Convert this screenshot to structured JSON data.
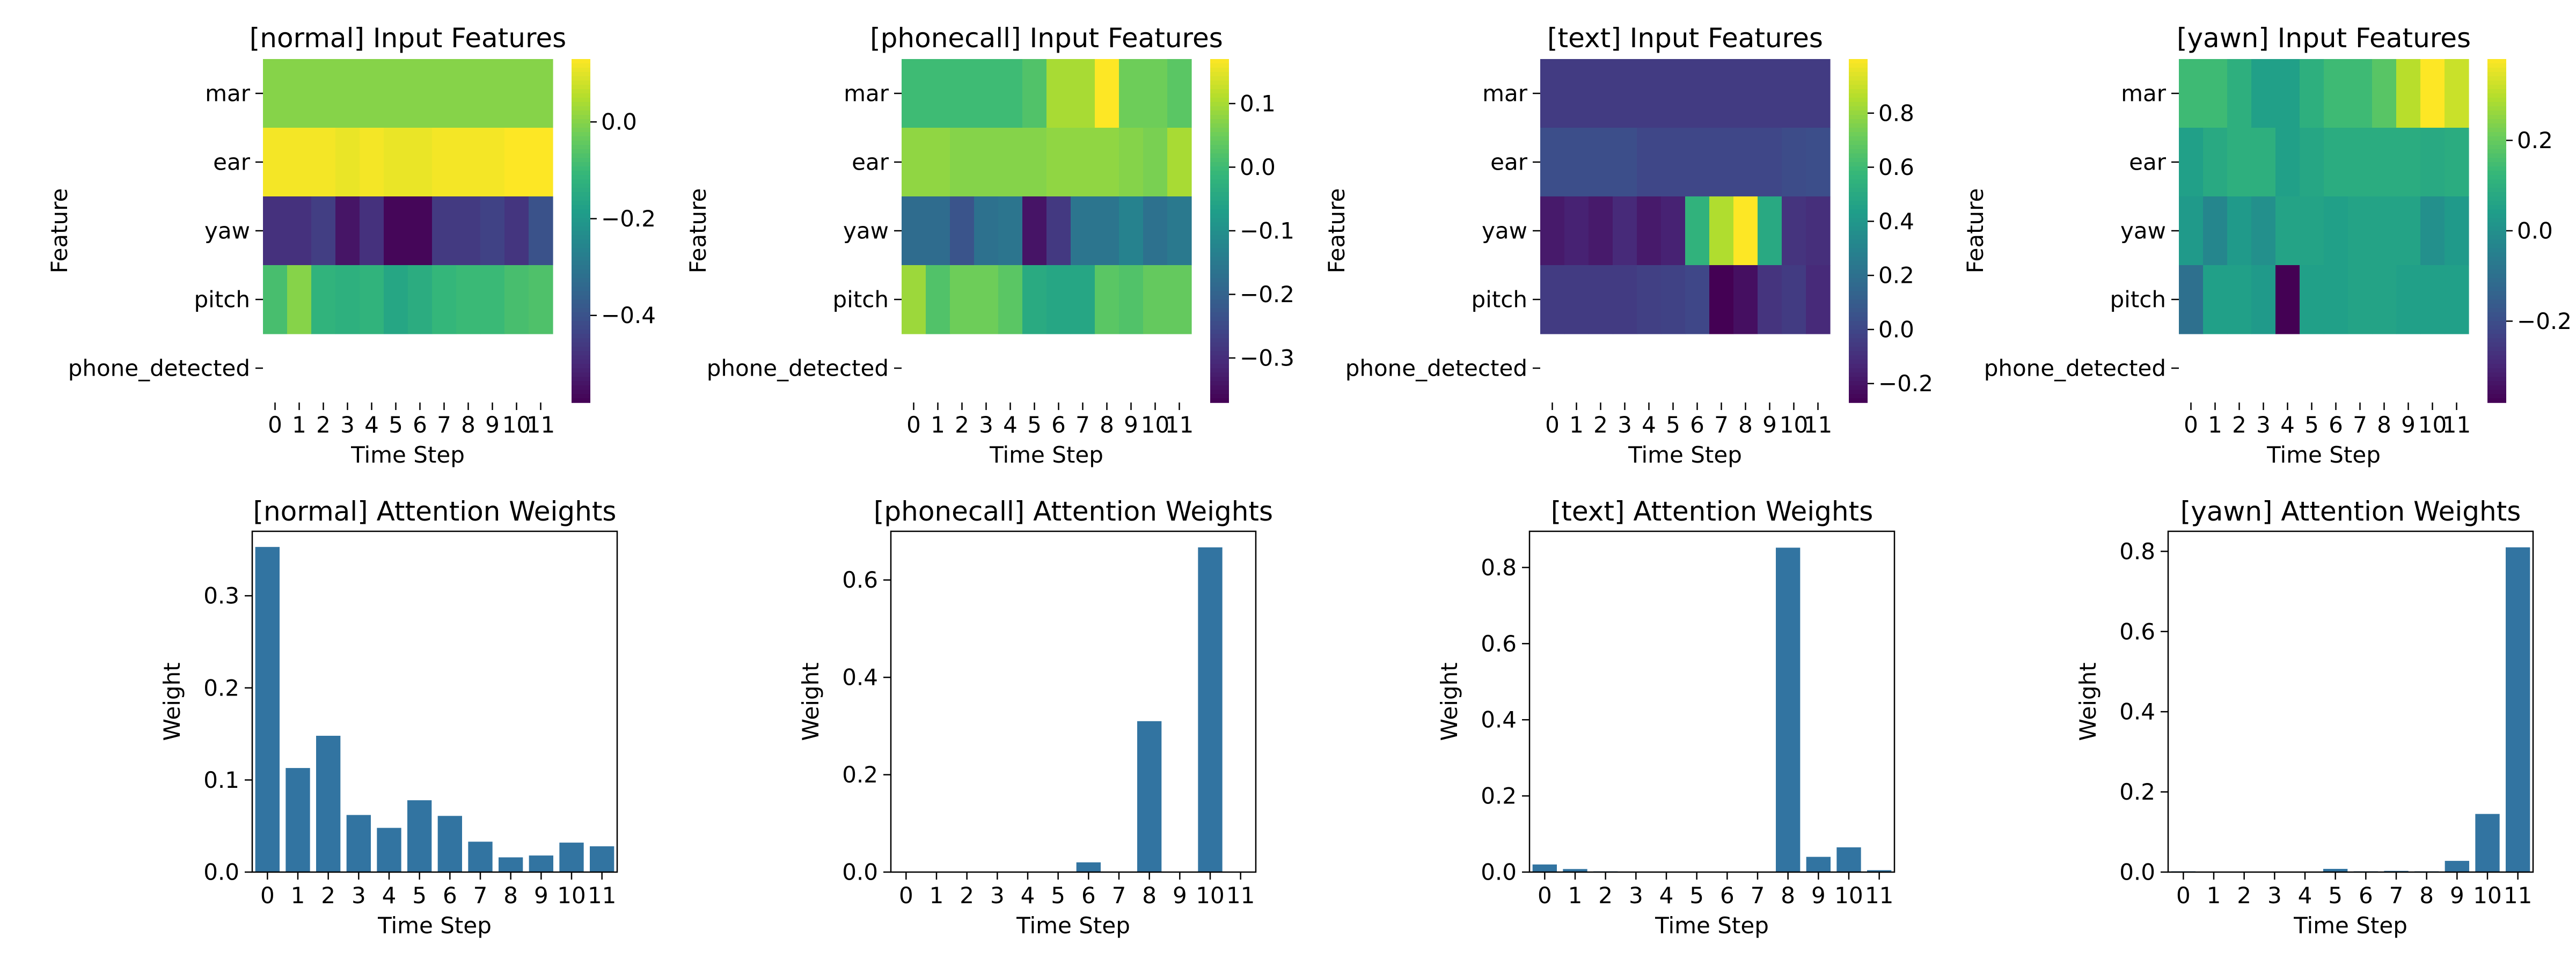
{
  "figure": {
    "background": "#ffffff",
    "text_color": "#000000",
    "bar_color": "#3274a1"
  },
  "chart_data": [
    {
      "type": "heatmap",
      "title": "[normal] Input Features",
      "xlabel": "Time Step",
      "ylabel": "Feature",
      "x": [
        "0",
        "1",
        "2",
        "3",
        "4",
        "5",
        "6",
        "7",
        "8",
        "9",
        "10",
        "11"
      ],
      "y": [
        "mar",
        "ear",
        "yaw",
        "pitch",
        "phone_detected"
      ],
      "colormap": "viridis",
      "vmin": -0.58,
      "vmax": 0.13,
      "colorbar_ticks": [
        0.0,
        -0.2,
        -0.4
      ],
      "colorbar_tick_labels": [
        "0.0",
        "−0.2",
        "−0.4"
      ],
      "values": [
        [
          0.0,
          0.0,
          0.0,
          0.0,
          0.0,
          0.0,
          0.0,
          0.0,
          0.0,
          0.0,
          0.0,
          0.0
        ],
        [
          0.12,
          0.12,
          0.12,
          0.11,
          0.12,
          0.11,
          0.11,
          0.12,
          0.12,
          0.12,
          0.13,
          0.13
        ],
        [
          -0.48,
          -0.48,
          -0.45,
          -0.54,
          -0.48,
          -0.57,
          -0.57,
          -0.46,
          -0.46,
          -0.44,
          -0.47,
          -0.4
        ],
        [
          -0.08,
          0.0,
          -0.12,
          -0.13,
          -0.12,
          -0.16,
          -0.14,
          -0.11,
          -0.1,
          -0.1,
          -0.08,
          -0.07
        ],
        null
      ]
    },
    {
      "type": "heatmap",
      "title": "[phonecall] Input Features",
      "xlabel": "Time Step",
      "ylabel": "Feature",
      "x": [
        "0",
        "1",
        "2",
        "3",
        "4",
        "5",
        "6",
        "7",
        "8",
        "9",
        "10",
        "11"
      ],
      "y": [
        "mar",
        "ear",
        "yaw",
        "pitch",
        "phone_detected"
      ],
      "colormap": "viridis",
      "vmin": -0.37,
      "vmax": 0.17,
      "colorbar_ticks": [
        0.1,
        0.0,
        -0.1,
        -0.2,
        -0.3
      ],
      "colorbar_tick_labels": [
        "0.1",
        "0.0",
        "−0.1",
        "−0.2",
        "−0.3"
      ],
      "values": [
        [
          0.0,
          0.0,
          0.0,
          0.0,
          0.0,
          0.02,
          0.1,
          0.1,
          0.17,
          0.05,
          0.05,
          0.03
        ],
        [
          0.08,
          0.08,
          0.07,
          0.07,
          0.07,
          0.07,
          0.08,
          0.08,
          0.08,
          0.07,
          0.06,
          0.1
        ],
        [
          -0.18,
          -0.18,
          -0.23,
          -0.17,
          -0.16,
          -0.34,
          -0.28,
          -0.16,
          -0.16,
          -0.13,
          -0.17,
          -0.15
        ],
        [
          0.09,
          0.02,
          0.05,
          0.05,
          0.03,
          -0.04,
          -0.05,
          -0.05,
          0.03,
          0.02,
          0.04,
          0.04
        ],
        null
      ]
    },
    {
      "type": "heatmap",
      "title": "[text] Input Features",
      "xlabel": "Time Step",
      "ylabel": "Feature",
      "x": [
        "0",
        "1",
        "2",
        "3",
        "4",
        "5",
        "6",
        "7",
        "8",
        "9",
        "10",
        "11"
      ],
      "y": [
        "mar",
        "ear",
        "yaw",
        "pitch",
        "phone_detected"
      ],
      "colormap": "viridis",
      "vmin": -0.27,
      "vmax": 1.0,
      "colorbar_ticks": [
        0.8,
        0.6,
        0.4,
        0.2,
        0.0,
        -0.2
      ],
      "colorbar_tick_labels": [
        "0.8",
        "0.6",
        "0.4",
        "0.2",
        "0.0",
        "−0.2"
      ],
      "values": [
        [
          -0.05,
          -0.05,
          -0.05,
          -0.05,
          -0.05,
          -0.05,
          -0.05,
          -0.05,
          -0.05,
          -0.05,
          -0.05,
          -0.05
        ],
        [
          0.03,
          0.03,
          0.03,
          0.03,
          0.0,
          0.0,
          0.0,
          0.0,
          0.0,
          0.0,
          0.02,
          0.03
        ],
        [
          -0.18,
          -0.15,
          -0.18,
          -0.12,
          -0.18,
          -0.15,
          0.55,
          0.85,
          1.0,
          0.5,
          -0.08,
          -0.1
        ],
        [
          -0.05,
          -0.05,
          -0.05,
          -0.05,
          -0.03,
          -0.02,
          0.0,
          -0.27,
          -0.22,
          -0.08,
          -0.05,
          -0.12
        ],
        null
      ]
    },
    {
      "type": "heatmap",
      "title": "[yawn] Input Features",
      "xlabel": "Time Step",
      "ylabel": "Feature",
      "x": [
        "0",
        "1",
        "2",
        "3",
        "4",
        "5",
        "6",
        "7",
        "8",
        "9",
        "10",
        "11"
      ],
      "y": [
        "mar",
        "ear",
        "yaw",
        "pitch",
        "phone_detected"
      ],
      "colormap": "viridis",
      "vmin": -0.38,
      "vmax": 0.38,
      "colorbar_ticks": [
        0.2,
        0.0,
        -0.2
      ],
      "colorbar_tick_labels": [
        "0.2",
        "0.0",
        "−0.2"
      ],
      "values": [
        [
          0.14,
          0.14,
          0.1,
          0.05,
          0.05,
          0.1,
          0.14,
          0.14,
          0.18,
          0.3,
          0.38,
          0.32
        ],
        [
          0.05,
          0.08,
          0.1,
          0.1,
          0.05,
          0.07,
          0.09,
          0.09,
          0.09,
          0.09,
          0.08,
          0.09
        ],
        [
          0.03,
          -0.03,
          0.03,
          0.0,
          0.06,
          0.06,
          0.05,
          0.06,
          0.06,
          0.06,
          0.0,
          0.03
        ],
        [
          -0.1,
          0.05,
          0.05,
          0.03,
          -0.38,
          0.05,
          0.05,
          0.06,
          0.06,
          0.05,
          0.05,
          0.05
        ],
        null
      ]
    },
    {
      "type": "bar",
      "title": "[normal] Attention Weights",
      "xlabel": "Time Step",
      "ylabel": "Weight",
      "categories": [
        "0",
        "1",
        "2",
        "3",
        "4",
        "5",
        "6",
        "7",
        "8",
        "9",
        "10",
        "11"
      ],
      "values": [
        0.353,
        0.113,
        0.148,
        0.062,
        0.048,
        0.078,
        0.061,
        0.033,
        0.016,
        0.018,
        0.032,
        0.028
      ],
      "ylim": [
        0,
        0.37
      ],
      "yticks": [
        0.0,
        0.1,
        0.2,
        0.3
      ],
      "ytick_labels": [
        "0.0",
        "0.1",
        "0.2",
        "0.3"
      ]
    },
    {
      "type": "bar",
      "title": "[phonecall] Attention Weights",
      "xlabel": "Time Step",
      "ylabel": "Weight",
      "categories": [
        "0",
        "1",
        "2",
        "3",
        "4",
        "5",
        "6",
        "7",
        "8",
        "9",
        "10",
        "11"
      ],
      "values": [
        0.0,
        0.0,
        0.0,
        0.0,
        0.0,
        0.0,
        0.02,
        0.0,
        0.31,
        0.0,
        0.667,
        0.0
      ],
      "ylim": [
        0,
        0.7
      ],
      "yticks": [
        0.0,
        0.2,
        0.4,
        0.6
      ],
      "ytick_labels": [
        "0.0",
        "0.2",
        "0.4",
        "0.6"
      ]
    },
    {
      "type": "bar",
      "title": "[text] Attention Weights",
      "xlabel": "Time Step",
      "ylabel": "Weight",
      "categories": [
        "0",
        "1",
        "2",
        "3",
        "4",
        "5",
        "6",
        "7",
        "8",
        "9",
        "10",
        "11"
      ],
      "values": [
        0.02,
        0.008,
        0.002,
        0.0,
        0.0,
        0.0,
        0.0,
        0.0,
        0.852,
        0.04,
        0.065,
        0.005
      ],
      "ylim": [
        0,
        0.895
      ],
      "yticks": [
        0.0,
        0.2,
        0.4,
        0.6,
        0.8
      ],
      "ytick_labels": [
        "0.0",
        "0.2",
        "0.4",
        "0.6",
        "0.8"
      ]
    },
    {
      "type": "bar",
      "title": "[yawn] Attention Weights",
      "xlabel": "Time Step",
      "ylabel": "Weight",
      "categories": [
        "0",
        "1",
        "2",
        "3",
        "4",
        "5",
        "6",
        "7",
        "8",
        "9",
        "10",
        "11"
      ],
      "values": [
        0.002,
        0.0,
        0.0,
        0.0,
        0.0,
        0.008,
        0.002,
        0.003,
        0.002,
        0.028,
        0.145,
        0.81
      ],
      "ylim": [
        0,
        0.85
      ],
      "yticks": [
        0.0,
        0.2,
        0.4,
        0.6,
        0.8
      ],
      "ytick_labels": [
        "0.0",
        "0.2",
        "0.4",
        "0.6",
        "0.8"
      ]
    }
  ]
}
